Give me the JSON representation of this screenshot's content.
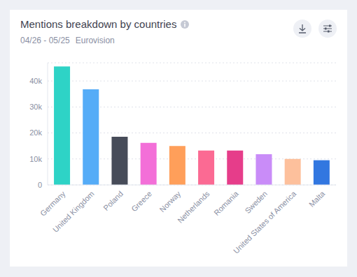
{
  "chart_data": {
    "type": "bar",
    "title": "Mentions breakdown by countries",
    "subtitle": "04/26 - 05/25",
    "annotations": [
      "Eurovision"
    ],
    "categories": [
      "Germany",
      "United Kingdom",
      "Poland",
      "Greece",
      "Norway",
      "Netherlands",
      "Romania",
      "Sweden",
      "United States of America",
      "Malta"
    ],
    "values": [
      45600,
      36800,
      18500,
      16200,
      15000,
      13200,
      13200,
      11800,
      10000,
      9500
    ],
    "colors": [
      "#2ed3c6",
      "#55acf7",
      "#474c59",
      "#f36fd8",
      "#ff9f5a",
      "#fb6a93",
      "#e63d8a",
      "#c98cf8",
      "#fdc09c",
      "#3277e0"
    ],
    "ylim": [
      0,
      47000
    ],
    "yticks": [
      0,
      {
        "value": 10000,
        "label": "10k"
      },
      {
        "value": 20000,
        "label": "20k"
      },
      {
        "value": 30000,
        "label": "30k"
      },
      {
        "value": 40000,
        "label": "40k"
      }
    ],
    "grid": true
  }
}
